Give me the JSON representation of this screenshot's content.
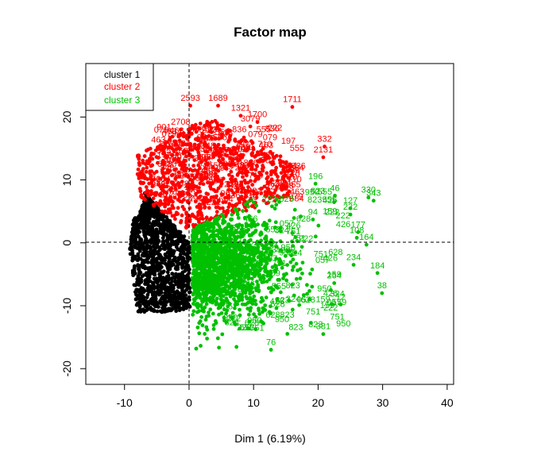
{
  "chart_data": {
    "type": "scatter",
    "title": "Factor map",
    "xlabel": "Dim 1 (6.19%)",
    "ylabel": "",
    "xlim": [
      -16,
      41
    ],
    "ylim": [
      -22.5,
      28.5
    ],
    "x_ticks": [
      -10,
      0,
      10,
      20,
      30,
      40
    ],
    "y_ticks": [
      -20,
      -10,
      0,
      10,
      20
    ],
    "x_tick_labels": [
      "-10",
      "0",
      "10",
      "20",
      "30",
      "40"
    ],
    "y_tick_labels": [
      "-20",
      "-10",
      "0",
      "10",
      "20"
    ],
    "reference_lines": {
      "x": 0,
      "y": 0,
      "style": "dashed"
    },
    "grid": false,
    "legend_position": "top-left",
    "colors": {
      "cluster 1": "#000000",
      "cluster 2": "#ff0000",
      "cluster 3": "#00c000"
    },
    "series": [
      {
        "name": "cluster 1",
        "color": "#000000",
        "region": {
          "x_center": -5,
          "y_center": -0.5,
          "x_range": [
            -10,
            0
          ],
          "y_range": [
            -12,
            8
          ]
        },
        "labeled_points": []
      },
      {
        "name": "cluster 2",
        "color": "#ff0000",
        "region": {
          "x_center": 3,
          "y_center": 11,
          "x_range": [
            -9,
            22
          ],
          "y_range": [
            2,
            22
          ]
        },
        "labeled_points": [
          {
            "label": "2593",
            "x": 0.2,
            "y": 21.8
          },
          {
            "label": "1689",
            "x": 4.5,
            "y": 21.8
          },
          {
            "label": "1711",
            "x": 16,
            "y": 21.6
          },
          {
            "label": "332",
            "x": 21,
            "y": 15.3
          },
          {
            "label": "2131",
            "x": 20.8,
            "y": 13.6
          },
          {
            "label": "2708",
            "x": -1.3,
            "y": 18
          },
          {
            "label": "3079",
            "x": 9.5,
            "y": 18.5
          },
          {
            "label": "1321",
            "x": 8,
            "y": 20.2
          },
          {
            "label": "1700",
            "x": 10.6,
            "y": 19.2
          }
        ]
      },
      {
        "name": "cluster 3",
        "color": "#00c000",
        "region": {
          "x_center": 11,
          "y_center": -3,
          "x_range": [
            0,
            30
          ],
          "y_range": [
            -17,
            10
          ]
        },
        "labeled_points": [
          {
            "label": "330",
            "x": 27.8,
            "y": 7.2
          },
          {
            "label": "343",
            "x": 28.6,
            "y": 6.7
          },
          {
            "label": "46",
            "x": 22.6,
            "y": 7.5
          },
          {
            "label": "127",
            "x": 25,
            "y": 5.5
          },
          {
            "label": "222",
            "x": 25,
            "y": 4.5
          },
          {
            "label": "164",
            "x": 27.5,
            "y": -0.3
          },
          {
            "label": "184",
            "x": 29.2,
            "y": -4.8
          },
          {
            "label": "38",
            "x": 29.9,
            "y": -8
          },
          {
            "label": "234",
            "x": 25.5,
            "y": -3.5
          },
          {
            "label": "254",
            "x": 22.5,
            "y": -6.4
          },
          {
            "label": "12",
            "x": 23.5,
            "y": -9.8
          },
          {
            "label": "76",
            "x": 12.7,
            "y": -17
          },
          {
            "label": "381",
            "x": 20.8,
            "y": -14.5
          },
          {
            "label": "196",
            "x": 19.6,
            "y": 9.4
          },
          {
            "label": "94",
            "x": 19.2,
            "y": 3.7
          },
          {
            "label": "108",
            "x": 26,
            "y": 0.8
          },
          {
            "label": "177",
            "x": 26.2,
            "y": 1.7
          }
        ]
      }
    ]
  }
}
